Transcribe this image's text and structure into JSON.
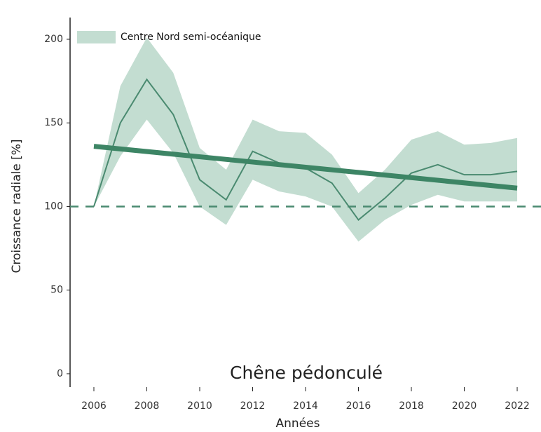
{
  "chart_data": {
    "type": "line",
    "title": "Chêne pédonculé",
    "xlabel": "Années",
    "ylabel": "Croissance radiale [%]",
    "x": [
      2006,
      2007,
      2008,
      2009,
      2010,
      2011,
      2012,
      2013,
      2014,
      2015,
      2016,
      2017,
      2018,
      2019,
      2020,
      2021,
      2022
    ],
    "series": [
      {
        "name": "Centre Nord semi-océanique",
        "color": "#4a8a70",
        "band_color": "#c3ddd1",
        "values": [
          100,
          150,
          176,
          155,
          116,
          104,
          133,
          126,
          123,
          114,
          92,
          105,
          120,
          125,
          119,
          119,
          121
        ],
        "upper": [
          100,
          172,
          201,
          180,
          135,
          122,
          152,
          145,
          144,
          131,
          108,
          122,
          140,
          145,
          137,
          138,
          141
        ],
        "lower": [
          100,
          130,
          152,
          132,
          100,
          89,
          116,
          109,
          106,
          100,
          79,
          92,
          101,
          107,
          103,
          103,
          103
        ]
      }
    ],
    "trend": {
      "x": [
        2006,
        2022
      ],
      "values": [
        136,
        111
      ],
      "color": "#3d8565"
    },
    "hline": {
      "value": 100,
      "color": "#4a8a70"
    },
    "xlim": [
      2005.1,
      2022.9
    ],
    "ylim": [
      -8,
      213
    ],
    "xticks": [
      2006,
      2008,
      2010,
      2012,
      2014,
      2016,
      2018,
      2020,
      2022
    ],
    "yticks": [
      0,
      50,
      100,
      150,
      200
    ],
    "legend": "upper left"
  }
}
